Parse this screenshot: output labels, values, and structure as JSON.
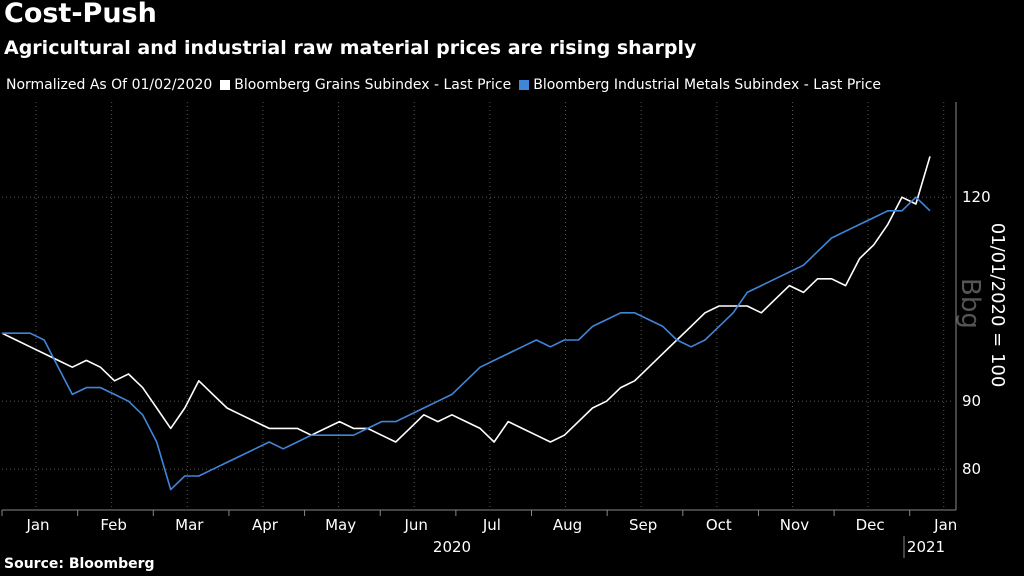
{
  "header": {
    "title": "Cost-Push",
    "subtitle": "Agricultural and industrial raw material prices are rising sharply"
  },
  "legend": {
    "note": "Normalized As Of 01/02/2020"
  },
  "source": "Source: Bloomberg",
  "watermark": "Bbg",
  "colors": {
    "background": "#000000",
    "grains": "#ffffff",
    "metals": "#3f86d9",
    "grid": "#555555"
  },
  "chart_data": {
    "type": "line",
    "ylabel": "01/01/2020 = 100",
    "ylim": [
      74,
      134
    ],
    "yticks": [
      80,
      90,
      120
    ],
    "ytick_labels": [
      "80",
      "90",
      "120"
    ],
    "grid": true,
    "months": [
      "Jan",
      "Feb",
      "Mar",
      "Apr",
      "May",
      "Jun",
      "Jul",
      "Aug",
      "Sep",
      "Oct",
      "Nov",
      "Dec",
      "Jan"
    ],
    "year_labels": [
      "2020",
      "2021"
    ],
    "series": [
      {
        "name": "Bloomberg Grains Subindex - Last Price",
        "color": "#ffffff",
        "values": [
          100,
          99,
          98,
          97,
          96,
          95,
          96,
          95,
          93,
          94,
          92,
          89,
          86,
          89,
          93,
          91,
          89,
          88,
          87,
          86,
          86,
          86,
          85,
          86,
          87,
          86,
          86,
          85,
          84,
          86,
          88,
          87,
          88,
          87,
          86,
          84,
          87,
          86,
          85,
          84,
          85,
          87,
          89,
          90,
          92,
          93,
          95,
          97,
          99,
          101,
          103,
          104,
          104,
          104,
          103,
          105,
          107,
          106,
          108,
          108,
          107,
          111,
          113,
          116,
          120,
          119,
          126
        ]
      },
      {
        "name": "Bloomberg Industrial Metals Subindex - Last Price",
        "color": "#3f86d9",
        "values": [
          100,
          100,
          100,
          99,
          95,
          91,
          92,
          92,
          91,
          90,
          88,
          84,
          77,
          79,
          79,
          80,
          81,
          82,
          83,
          84,
          83,
          84,
          85,
          85,
          85,
          85,
          86,
          87,
          87,
          88,
          89,
          90,
          91,
          93,
          95,
          96,
          97,
          98,
          99,
          98,
          99,
          99,
          101,
          102,
          103,
          103,
          102,
          101,
          99,
          98,
          99,
          101,
          103,
          106,
          107,
          108,
          109,
          110,
          112,
          114,
          115,
          116,
          117,
          118,
          118,
          120,
          118
        ]
      }
    ]
  }
}
